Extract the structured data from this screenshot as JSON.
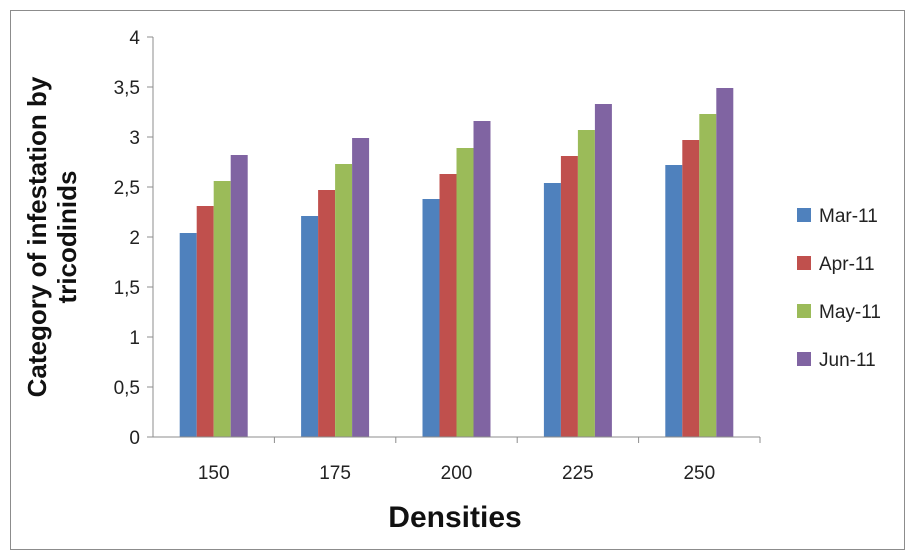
{
  "chart_data": {
    "type": "bar",
    "title": "",
    "xlabel": "Densities",
    "ylabel": "Category of infestation by tricodinids",
    "ylim": [
      0,
      4
    ],
    "yticks": [
      "0",
      "0,5",
      "1",
      "1,5",
      "2",
      "2,5",
      "3",
      "3,5",
      "4"
    ],
    "ytick_values": [
      0,
      0.5,
      1,
      1.5,
      2,
      2.5,
      3,
      3.5,
      4
    ],
    "categories": [
      "150",
      "175",
      "200",
      "225",
      "250"
    ],
    "grid": false,
    "legend_position": "right",
    "series": [
      {
        "name": "Mar-11",
        "color": "#4f81bd",
        "values": [
          2.04,
          2.21,
          2.38,
          2.54,
          2.72
        ]
      },
      {
        "name": "Apr-11",
        "color": "#c0504d",
        "values": [
          2.31,
          2.47,
          2.63,
          2.81,
          2.97
        ]
      },
      {
        "name": "May-11",
        "color": "#9bbb59",
        "values": [
          2.56,
          2.73,
          2.89,
          3.07,
          3.23
        ]
      },
      {
        "name": "Jun-11",
        "color": "#8064a2",
        "values": [
          2.82,
          2.99,
          3.16,
          3.33,
          3.49
        ]
      }
    ]
  }
}
